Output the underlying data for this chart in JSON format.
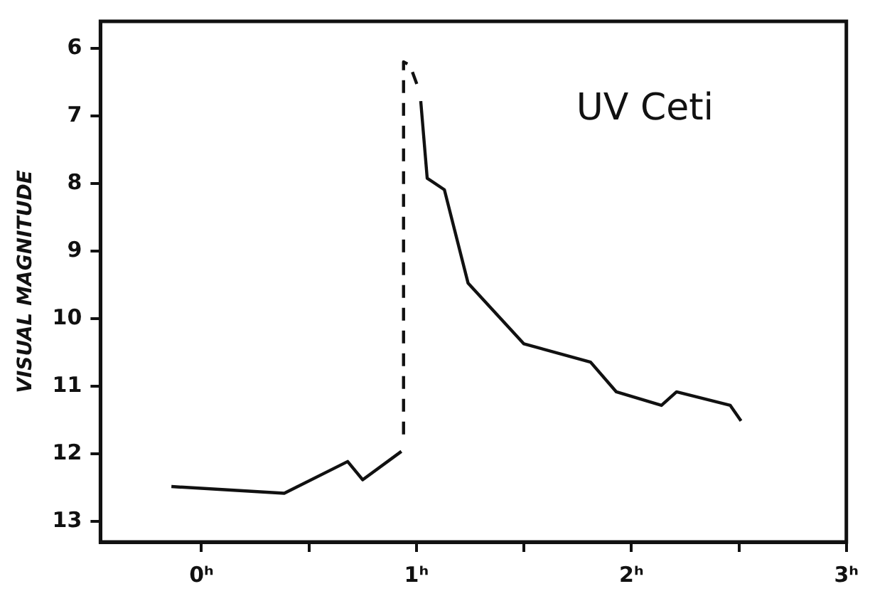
{
  "chart_data": {
    "type": "line",
    "ylabel": "VISUAL MAGNITUDE",
    "annotations": [
      "UV Ceti"
    ],
    "xlim": [
      -0.47,
      3
    ],
    "xticks": [
      {
        "value": 0,
        "label": "0ʰ"
      },
      {
        "value": 0.5,
        "label": null
      },
      {
        "value": 1,
        "label": "1ʰ"
      },
      {
        "value": 1.5,
        "label": null
      },
      {
        "value": 2,
        "label": "2ʰ"
      },
      {
        "value": 2.5,
        "label": null
      },
      {
        "value": 3,
        "label": "3ʰ"
      }
    ],
    "ylim": [
      13.3,
      5.6
    ],
    "yticks": [
      6,
      7,
      8,
      9,
      10,
      11,
      12,
      13
    ],
    "grid": false,
    "legend": false,
    "marker": "none",
    "series": [
      {
        "color": "#111111",
        "line_style": "solid",
        "x": [
          -0.14,
          0.385,
          0.68,
          0.75,
          0.93
        ],
        "values": [
          12.48,
          12.58,
          12.11,
          12.38,
          11.96
        ]
      },
      {
        "color": "#111111",
        "line_style": "dashed",
        "x": [
          0.94,
          0.94,
          0.97,
          1.01
        ],
        "values": [
          11.71,
          6.2,
          6.25,
          6.6
        ]
      },
      {
        "color": "#111111",
        "line_style": "solid",
        "x": [
          1.02,
          1.05,
          1.13,
          1.24,
          1.5,
          1.81,
          1.93,
          2.14,
          2.21,
          2.46,
          2.51
        ],
        "values": [
          6.78,
          7.92,
          8.09,
          9.47,
          10.37,
          10.64,
          11.08,
          11.28,
          11.08,
          11.28,
          11.51
        ]
      }
    ]
  }
}
